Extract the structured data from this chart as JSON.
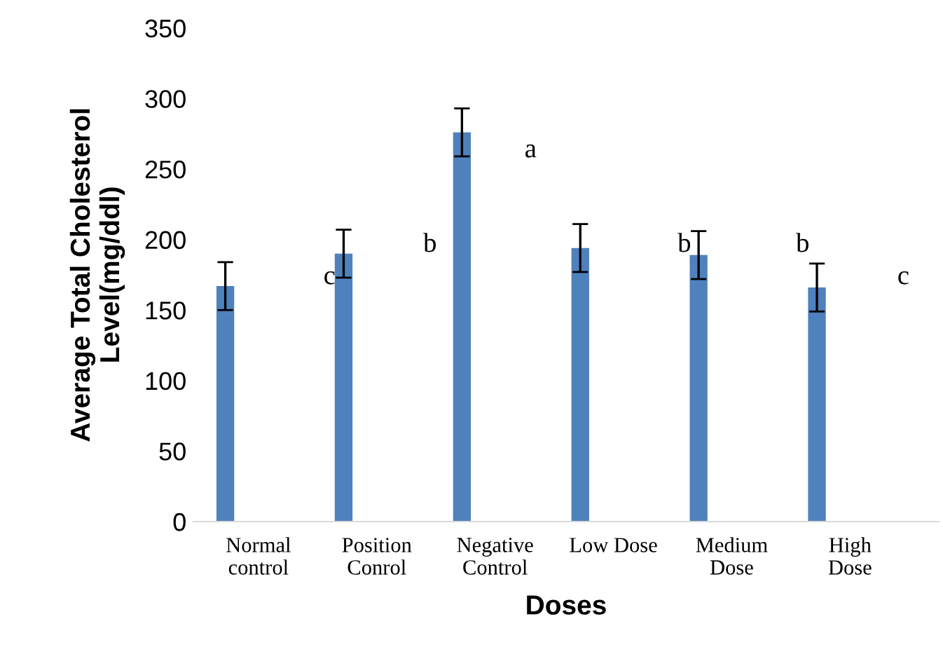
{
  "chart_data": {
    "type": "bar",
    "xlabel": "Doses",
    "ylabel": "Average Total Cholesterol\nLevel(mg/ddl)",
    "categories": [
      "Normal\ncontrol",
      "Position\nConrol",
      "Negative\nControl",
      "Low Dose",
      "Medium\nDose",
      "High\nDose"
    ],
    "values": [
      167,
      190,
      276,
      194,
      189,
      166
    ],
    "errors": [
      17,
      17,
      17,
      17,
      17,
      17
    ],
    "color": "#4f81bd",
    "ylim": [
      0,
      350
    ],
    "yticks": [
      0,
      50,
      100,
      150,
      200,
      250,
      300,
      350
    ],
    "annotations": [
      "c",
      "b",
      "a",
      "b",
      "b",
      "c"
    ]
  }
}
